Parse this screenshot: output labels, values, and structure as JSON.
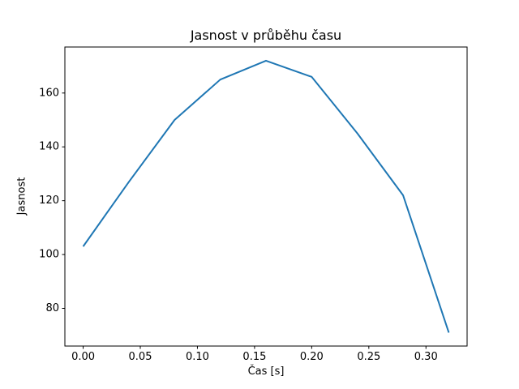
{
  "figure": {
    "background": "#ffffff"
  },
  "chart_data": {
    "type": "line",
    "title": "Jasnost v průběhu času",
    "xlabel": "Čas [s]",
    "ylabel": "Jasnost",
    "x": [
      0.0,
      0.04,
      0.08,
      0.12,
      0.16,
      0.2,
      0.24,
      0.28,
      0.32
    ],
    "series": [
      {
        "name": "jasnost",
        "values": [
          103,
          127,
          150,
          165,
          172,
          166,
          145,
          122,
          71
        ],
        "color": "#1f77b4"
      }
    ],
    "xlim": [
      -0.016,
      0.336
    ],
    "ylim": [
      66,
      177.1
    ],
    "xticks": [
      0.0,
      0.05,
      0.1,
      0.15,
      0.2,
      0.25,
      0.3
    ],
    "xtick_labels": [
      "0.00",
      "0.05",
      "0.10",
      "0.15",
      "0.20",
      "0.25",
      "0.30"
    ],
    "yticks": [
      80,
      100,
      120,
      140,
      160
    ],
    "ytick_labels": [
      "80",
      "100",
      "120",
      "140",
      "160"
    ],
    "grid": false,
    "legend": null,
    "line_width": 2,
    "axes_color": "#000000"
  }
}
